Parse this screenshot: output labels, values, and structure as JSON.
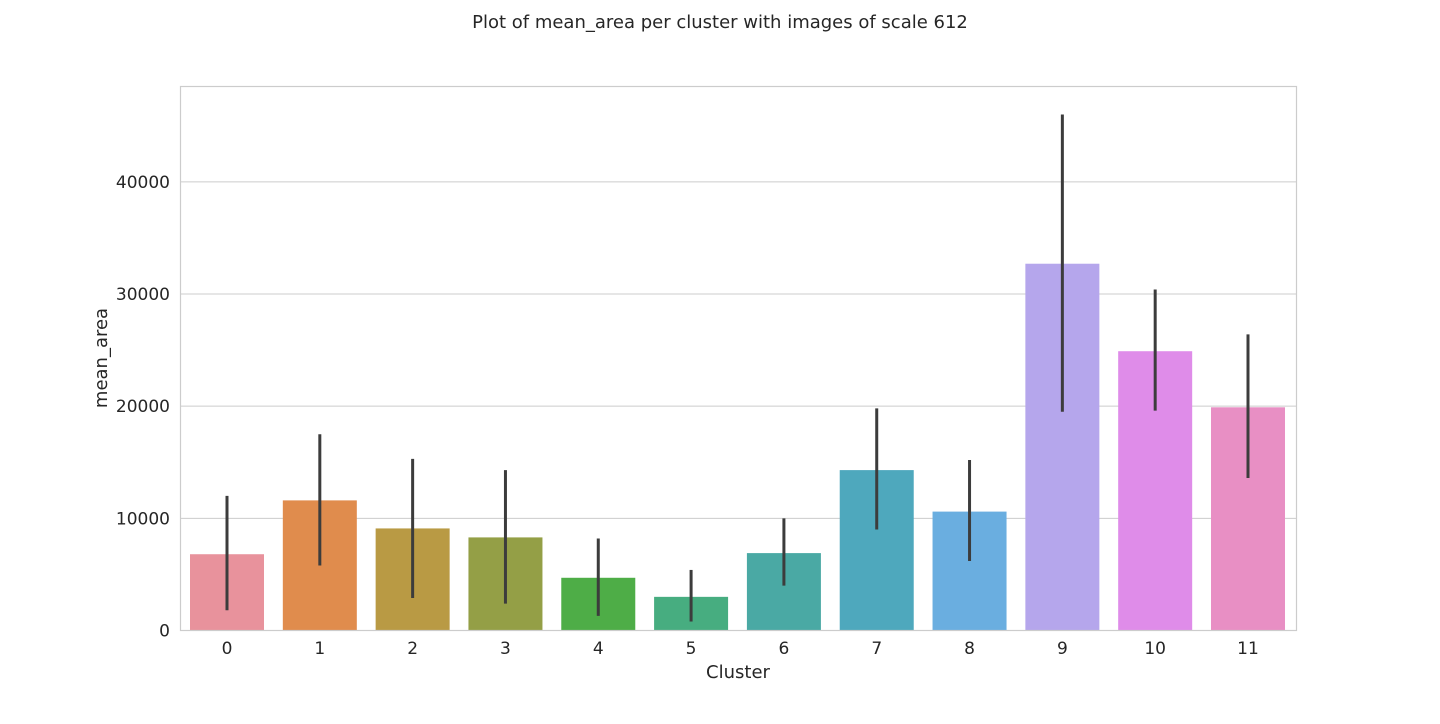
{
  "chart_data": {
    "type": "bar",
    "title": "Plot of mean_area per cluster with images of scale 612",
    "xlabel": "Cluster",
    "ylabel": "mean_area",
    "categories": [
      "0",
      "1",
      "2",
      "3",
      "4",
      "5",
      "6",
      "7",
      "8",
      "9",
      "10",
      "11"
    ],
    "values": [
      6800,
      11600,
      9100,
      8300,
      4700,
      3000,
      6900,
      14300,
      10600,
      32700,
      24900,
      19900
    ],
    "ci_low": [
      1800,
      5800,
      2900,
      2400,
      1300,
      800,
      4000,
      9000,
      6200,
      19500,
      19600,
      13600
    ],
    "ci_high": [
      12000,
      17500,
      15300,
      14300,
      8200,
      5400,
      10000,
      19800,
      15200,
      46000,
      30400,
      26400
    ],
    "colors": [
      "#e8929c",
      "#e08c4d",
      "#b99a44",
      "#949f46",
      "#4ead47",
      "#47ad80",
      "#4aa9a4",
      "#4ea8bd",
      "#6aaee0",
      "#b5a6ec",
      "#df8ce9",
      "#e88fc4"
    ],
    "ylim": [
      0,
      48500
    ],
    "yticks": [
      0,
      10000,
      20000,
      30000,
      40000
    ],
    "ytick_labels": [
      "0",
      "10000",
      "20000",
      "30000",
      "40000"
    ],
    "grid": true,
    "errorbar_color": "#3c3c3c",
    "grid_color": "#cccccc",
    "frame_color": "#cccccc"
  }
}
